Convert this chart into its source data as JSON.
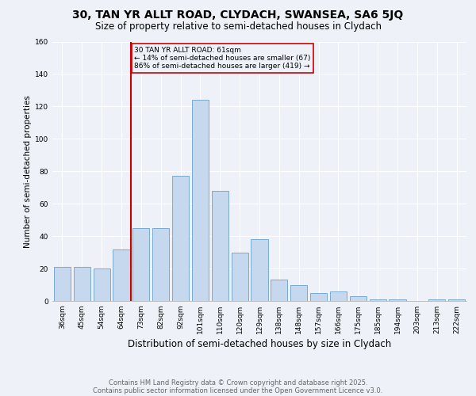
{
  "title": "30, TAN YR ALLT ROAD, CLYDACH, SWANSEA, SA6 5JQ",
  "subtitle": "Size of property relative to semi-detached houses in Clydach",
  "xlabel": "Distribution of semi-detached houses by size in Clydach",
  "ylabel": "Number of semi-detached properties",
  "categories": [
    "36sqm",
    "45sqm",
    "54sqm",
    "64sqm",
    "73sqm",
    "82sqm",
    "92sqm",
    "101sqm",
    "110sqm",
    "120sqm",
    "129sqm",
    "138sqm",
    "148sqm",
    "157sqm",
    "166sqm",
    "175sqm",
    "185sqm",
    "194sqm",
    "203sqm",
    "213sqm",
    "222sqm"
  ],
  "values": [
    21,
    21,
    20,
    32,
    45,
    45,
    77,
    124,
    68,
    30,
    38,
    13,
    10,
    5,
    6,
    3,
    1,
    1,
    0,
    1,
    1
  ],
  "bar_color": "#c5d8ee",
  "bar_edge_color": "#7aaad0",
  "vline_x": 3.5,
  "vline_color": "#cc0000",
  "annotation_title": "30 TAN YR ALLT ROAD: 61sqm",
  "annotation_line1": "← 14% of semi-detached houses are smaller (67)",
  "annotation_line2": "86% of semi-detached houses are larger (419) →",
  "annotation_box_color": "#cc0000",
  "footer_line1": "Contains HM Land Registry data © Crown copyright and database right 2025.",
  "footer_line2": "Contains public sector information licensed under the Open Government Licence v3.0.",
  "ylim": [
    0,
    160
  ],
  "background_color": "#eef2f8",
  "grid_color": "#ffffff",
  "title_fontsize": 10,
  "subtitle_fontsize": 8.5,
  "ylabel_fontsize": 7.5,
  "xlabel_fontsize": 8.5,
  "tick_fontsize": 6.5,
  "footer_fontsize": 6,
  "ann_fontsize": 6.5
}
